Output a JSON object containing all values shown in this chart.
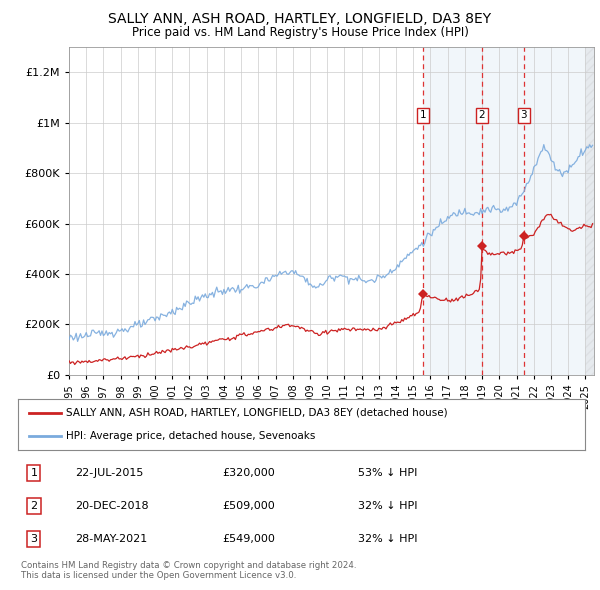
{
  "title": "SALLY ANN, ASH ROAD, HARTLEY, LONGFIELD, DA3 8EY",
  "subtitle": "Price paid vs. HM Land Registry's House Price Index (HPI)",
  "background_color": "#ffffff",
  "plot_bg_color": "#ffffff",
  "grid_color": "#cccccc",
  "hpi_color": "#7aaadd",
  "price_color": "#cc2222",
  "sale_marker_color": "#cc2222",
  "highlight_bg": "#ddeeff",
  "dashed_line_color": "#dd3333",
  "legend_text_1": "SALLY ANN, ASH ROAD, HARTLEY, LONGFIELD, DA3 8EY (detached house)",
  "legend_text_2": "HPI: Average price, detached house, Sevenoaks",
  "footer_1": "Contains HM Land Registry data © Crown copyright and database right 2024.",
  "footer_2": "This data is licensed under the Open Government Licence v3.0.",
  "transactions": [
    {
      "num": 1,
      "date": "22-JUL-2015",
      "price": 320000,
      "x": 2015.55
    },
    {
      "num": 2,
      "date": "20-DEC-2018",
      "price": 509000,
      "x": 2018.97
    },
    {
      "num": 3,
      "date": "28-MAY-2021",
      "price": 549000,
      "x": 2021.41
    }
  ],
  "table_rows": [
    [
      "1",
      "22-JUL-2015",
      "£320,000",
      "53% ↓ HPI"
    ],
    [
      "2",
      "20-DEC-2018",
      "£509,000",
      "32% ↓ HPI"
    ],
    [
      "3",
      "28-MAY-2021",
      "£549,000",
      "32% ↓ HPI"
    ]
  ],
  "ylim": [
    0,
    1300000
  ],
  "yticks": [
    0,
    200000,
    400000,
    600000,
    800000,
    1000000,
    1200000
  ],
  "xlim_start": 1995.0,
  "xlim_end": 2025.5,
  "xtick_years": [
    1995,
    1996,
    1997,
    1998,
    1999,
    2000,
    2001,
    2002,
    2003,
    2004,
    2005,
    2006,
    2007,
    2008,
    2009,
    2010,
    2011,
    2012,
    2013,
    2014,
    2015,
    2016,
    2017,
    2018,
    2019,
    2020,
    2021,
    2022,
    2023,
    2024,
    2025
  ]
}
